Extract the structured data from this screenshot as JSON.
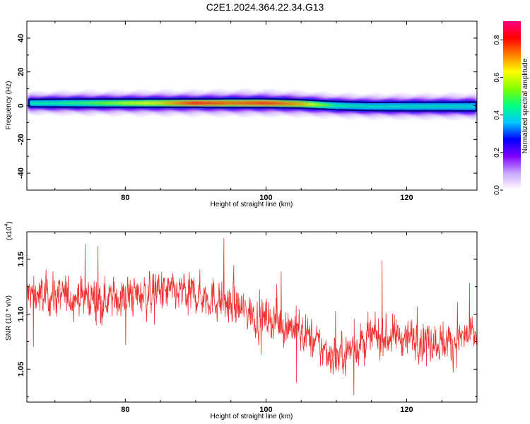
{
  "title": "C2E1.2024.364.22.34.G13",
  "chart_data": [
    {
      "type": "heatmap",
      "xlabel": "Height of straight line (km)",
      "ylabel": "Frequency (Hz)",
      "xlim": [
        66,
        130
      ],
      "ylim": [
        -50,
        50
      ],
      "xticks": [
        80,
        100,
        120
      ],
      "yticks": [
        -40,
        -20,
        0,
        20,
        40
      ],
      "band": {
        "x": [
          66.3,
          70,
          75,
          80,
          85,
          90,
          95,
          100,
          105,
          110,
          115,
          120,
          125,
          130
        ],
        "center_y": [
          1.5,
          1.5,
          1.5,
          1.5,
          1.5,
          1.5,
          1.5,
          1.5,
          1.0,
          0.0,
          -0.5,
          -0.5,
          -0.5,
          -0.5
        ],
        "half_width": [
          2.2,
          2.3,
          2.4,
          2.4,
          2.5,
          2.5,
          2.6,
          2.6,
          2.5,
          2.4,
          2.4,
          2.5,
          2.5,
          2.6
        ],
        "amplitude": [
          0.45,
          0.45,
          0.5,
          0.6,
          0.65,
          0.82,
          0.75,
          0.8,
          0.7,
          0.45,
          0.42,
          0.42,
          0.42,
          0.4
        ]
      },
      "colorbar": {
        "label": "Normalized spectral amplitude",
        "range": [
          0,
          0.9
        ],
        "ticks": [
          "0.0",
          "0.2",
          "0.4",
          "0.6",
          "0.8"
        ],
        "stops": [
          "#ffffff",
          "#c8a8ff",
          "#7f00ff",
          "#0000ff",
          "#00c8ff",
          "#00ff80",
          "#80ff00",
          "#ffff00",
          "#ff8000",
          "#ff0000",
          "#ff0080"
        ]
      }
    },
    {
      "type": "line",
      "xlabel": "Height of straight line (km)",
      "ylabel": "SNR (10 * v/v)",
      "y_exponent_label": "(x10",
      "y_exponent": "4",
      "y_exponent_close": ")",
      "xlim": [
        66,
        130
      ],
      "ylim": [
        1.02,
        1.175
      ],
      "xticks": [
        80,
        100,
        120
      ],
      "yticks": [
        "1.05",
        "1.10",
        "1.15"
      ],
      "color": "#f03030",
      "trend": {
        "x": [
          66,
          70,
          74,
          78,
          82,
          86,
          90,
          94,
          98,
          102,
          104,
          106,
          108,
          110,
          112,
          115,
          118,
          122,
          126,
          130
        ],
        "y": [
          1.118,
          1.117,
          1.116,
          1.114,
          1.118,
          1.12,
          1.118,
          1.112,
          1.1,
          1.093,
          1.088,
          1.08,
          1.068,
          1.062,
          1.068,
          1.078,
          1.08,
          1.078,
          1.074,
          1.082
        ]
      },
      "noise_amplitude": 0.012,
      "sample_count": 1500
    }
  ]
}
